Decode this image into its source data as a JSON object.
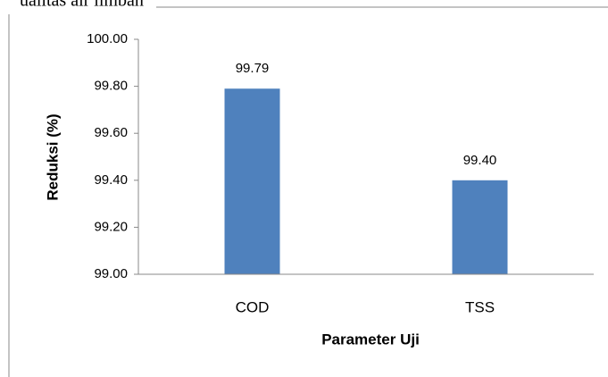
{
  "caption": "ualitas air limbah",
  "chart_data": {
    "type": "bar",
    "categories": [
      "COD",
      "TSS"
    ],
    "values": [
      99.79,
      99.4
    ],
    "value_labels": [
      "99.79",
      "99.40"
    ],
    "color": "#4f81bd",
    "xlabel": "Parameter Uji",
    "ylabel": "Reduksi (%)",
    "ylim": [
      99,
      100
    ],
    "yticks": [
      {
        "value": 99,
        "label": "99.00"
      },
      {
        "value": 99.2,
        "label": "99.20"
      },
      {
        "value": 99.4,
        "label": "99.40"
      },
      {
        "value": 99.6,
        "label": "99.60"
      },
      {
        "value": 99.8,
        "label": "99.80"
      },
      {
        "value": 100,
        "label": "100.00"
      }
    ],
    "grid": false
  }
}
